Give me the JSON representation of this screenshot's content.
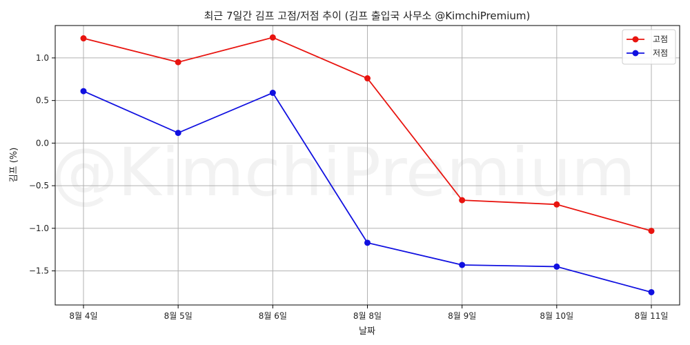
{
  "chart_data": {
    "type": "line",
    "title": "최근 7일간 김프 고점/저점 추이 (김프 출입국 사무소 @KimchiPremium)",
    "xlabel": "날짜",
    "ylabel": "김프 (%)",
    "categories": [
      "8월 4일",
      "8월 5일",
      "8월 6일",
      "8월 8일",
      "8월 9일",
      "8월 10일",
      "8월 11일"
    ],
    "series": [
      {
        "name": "고점",
        "color": "#e8140f",
        "values": [
          1.23,
          0.95,
          1.24,
          0.76,
          -0.67,
          -0.72,
          -1.03
        ]
      },
      {
        "name": "저점",
        "color": "#1010e0",
        "values": [
          0.61,
          0.12,
          0.59,
          -1.17,
          -1.43,
          -1.45,
          -1.75
        ]
      }
    ],
    "yticks": [
      1.0,
      0.5,
      0.0,
      -0.5,
      -1.0,
      -1.5
    ],
    "ytick_labels": [
      "1.0",
      "0.5",
      "0.0",
      "−0.5",
      "−1.0",
      "−1.5"
    ],
    "ylim": [
      -1.9,
      1.38
    ],
    "grid": true,
    "legend_position": "top-right",
    "watermark": "@KimchiPremium"
  }
}
